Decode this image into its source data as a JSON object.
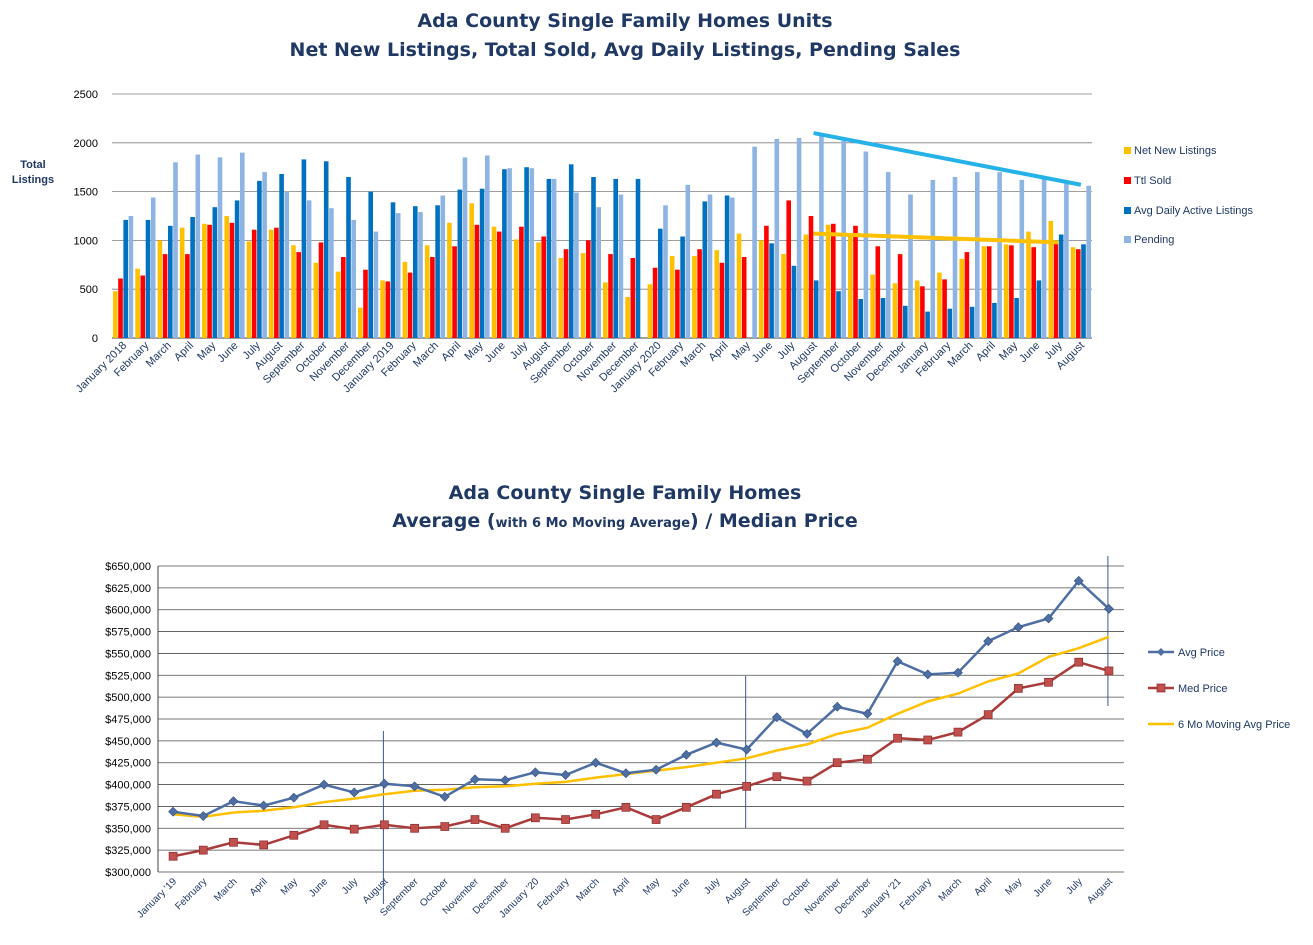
{
  "chart_data": [
    {
      "type": "bar",
      "title": "Ada County Single Family Homes Units",
      "subtitle": "Net New Listings, Total Sold, Avg Daily Listings, Pending Sales",
      "ylabel": "Total Listings",
      "ylim": [
        0,
        2500
      ],
      "yticks": [
        "0",
        "500",
        "1000",
        "1500",
        "2000",
        "2500"
      ],
      "grid": true,
      "legend": "right",
      "categories": [
        "January 2018",
        "February",
        "March",
        "April",
        "May",
        "June",
        "July",
        "August",
        "September",
        "October",
        "November",
        "December",
        "January 2019",
        "February",
        "March",
        "April",
        "May",
        "June",
        "July",
        "August",
        "September",
        "October",
        "November",
        "December",
        "January 2020",
        "February",
        "March",
        "April",
        "May",
        "June",
        "July",
        "August",
        "September",
        "October",
        "November",
        "December",
        "January",
        "February",
        "March",
        "April",
        "May",
        "June",
        "July",
        "August"
      ],
      "series": [
        {
          "name": "Net New Listings",
          "color": "#ffc000",
          "values": [
            480,
            710,
            1000,
            1130,
            1170,
            1250,
            990,
            1110,
            950,
            770,
            680,
            310,
            590,
            780,
            950,
            1180,
            1380,
            1140,
            1010,
            980,
            820,
            870,
            570,
            420,
            550,
            840,
            840,
            900,
            1070,
            1000,
            860,
            1060,
            1160,
            1040,
            650,
            560,
            590,
            670,
            810,
            940,
            960,
            1090,
            1200,
            930
          ]
        },
        {
          "name": "Ttl Sold",
          "color": "#ff0000",
          "values": [
            610,
            640,
            860,
            860,
            1160,
            1180,
            1110,
            1130,
            880,
            980,
            830,
            700,
            580,
            670,
            830,
            940,
            1160,
            1090,
            1140,
            1040,
            910,
            1000,
            860,
            820,
            720,
            700,
            910,
            770,
            830,
            1150,
            1410,
            1250,
            1170,
            1150,
            940,
            860,
            530,
            600,
            880,
            940,
            950,
            930,
            990,
            910
          ]
        },
        {
          "name": "Avg Daily Active Listings",
          "color": "#0070c0",
          "values": [
            1210,
            1210,
            1150,
            1240,
            1340,
            1410,
            1610,
            1680,
            1830,
            1810,
            1650,
            1500,
            1390,
            1350,
            1360,
            1520,
            1530,
            1730,
            1750,
            1630,
            1780,
            1650,
            1630,
            1630,
            1120,
            1040,
            1400,
            1460,
            null,
            970,
            740,
            590,
            480,
            400,
            410,
            330,
            270,
            300,
            320,
            360,
            410,
            590,
            1060,
            960
          ]
        },
        {
          "name": "Pending",
          "color": "#8db4e2",
          "values": [
            1250,
            1440,
            1800,
            1880,
            1850,
            1900,
            1700,
            1500,
            1410,
            1330,
            1210,
            1090,
            1280,
            1290,
            1460,
            1850,
            1870,
            1740,
            1740,
            1630,
            1490,
            1340,
            1470,
            null,
            1360,
            1570,
            1470,
            1440,
            1960,
            2040,
            2050,
            2100,
            2020,
            1910,
            1700,
            1470,
            1620,
            1650,
            1700,
            1700,
            1620,
            1630,
            1590,
            1560
          ]
        }
      ],
      "trendlines": [
        {
          "name": "Pending trend",
          "color": "#25b2e8",
          "from_index": 31,
          "from_value": 2100,
          "to_index": 43,
          "to_value": 1570
        },
        {
          "name": "Net New Listings trend",
          "color": "#ffc000",
          "from_index": 31,
          "from_value": 1070,
          "to_index": 42,
          "to_value": 980
        }
      ]
    },
    {
      "type": "line",
      "title": "Ada County Single Family Homes",
      "subtitle_main": "Average (",
      "subtitle_small": "with 6 Mo Moving Average",
      "subtitle_end": ") / Median Price",
      "ylim": [
        300000,
        650000
      ],
      "yticks": [
        "$300,000",
        "$325,000",
        "$350,000",
        "$375,000",
        "$400,000",
        "$425,000",
        "$450,000",
        "$475,000",
        "$500,000",
        "$525,000",
        "$550,000",
        "$575,000",
        "$600,000",
        "$625,000",
        "$650,000"
      ],
      "grid": true,
      "legend": "right",
      "categories": [
        "January '19",
        "February",
        "March",
        "April",
        "May",
        "June",
        "July",
        "August",
        "September",
        "October",
        "November",
        "December",
        "January '20",
        "February",
        "March",
        "April",
        "May",
        "June",
        "July",
        "August",
        "September",
        "October",
        "November",
        "December",
        "January '21",
        "February",
        "March",
        "April",
        "May",
        "June",
        "July",
        "August"
      ],
      "series": [
        {
          "name": "Avg Price",
          "color": "#4f6fa4",
          "values": [
            369000,
            364000,
            381000,
            376000,
            385000,
            400000,
            391000,
            401000,
            398000,
            386000,
            406000,
            405000,
            414000,
            411000,
            425000,
            413000,
            417000,
            434000,
            448000,
            440000,
            477000,
            458000,
            489000,
            481000,
            541000,
            526000,
            528000,
            564000,
            580000,
            590000,
            633000,
            601000
          ]
        },
        {
          "name": "Med Price",
          "color": "#a93b3b",
          "values": [
            318000,
            325000,
            334000,
            331000,
            342000,
            354000,
            349000,
            354000,
            350000,
            352000,
            360000,
            350000,
            362000,
            360000,
            366000,
            374000,
            360000,
            374000,
            389000,
            398000,
            409000,
            404000,
            425000,
            429000,
            453000,
            451000,
            460000,
            480000,
            510000,
            517000,
            540000,
            530000
          ]
        },
        {
          "name": "6 Mo Moving Avg Price",
          "color": "#ffc000",
          "values": [
            366000,
            363000,
            368000,
            370000,
            374000,
            380000,
            384000,
            389000,
            393000,
            394000,
            397000,
            398000,
            401000,
            403000,
            408000,
            412000,
            416000,
            420000,
            425000,
            430000,
            439000,
            446000,
            458000,
            465000,
            481000,
            495000,
            504000,
            518000,
            527000,
            546000,
            556000,
            569000
          ]
        }
      ],
      "markers": [
        "August",
        "August",
        "August"
      ]
    }
  ]
}
